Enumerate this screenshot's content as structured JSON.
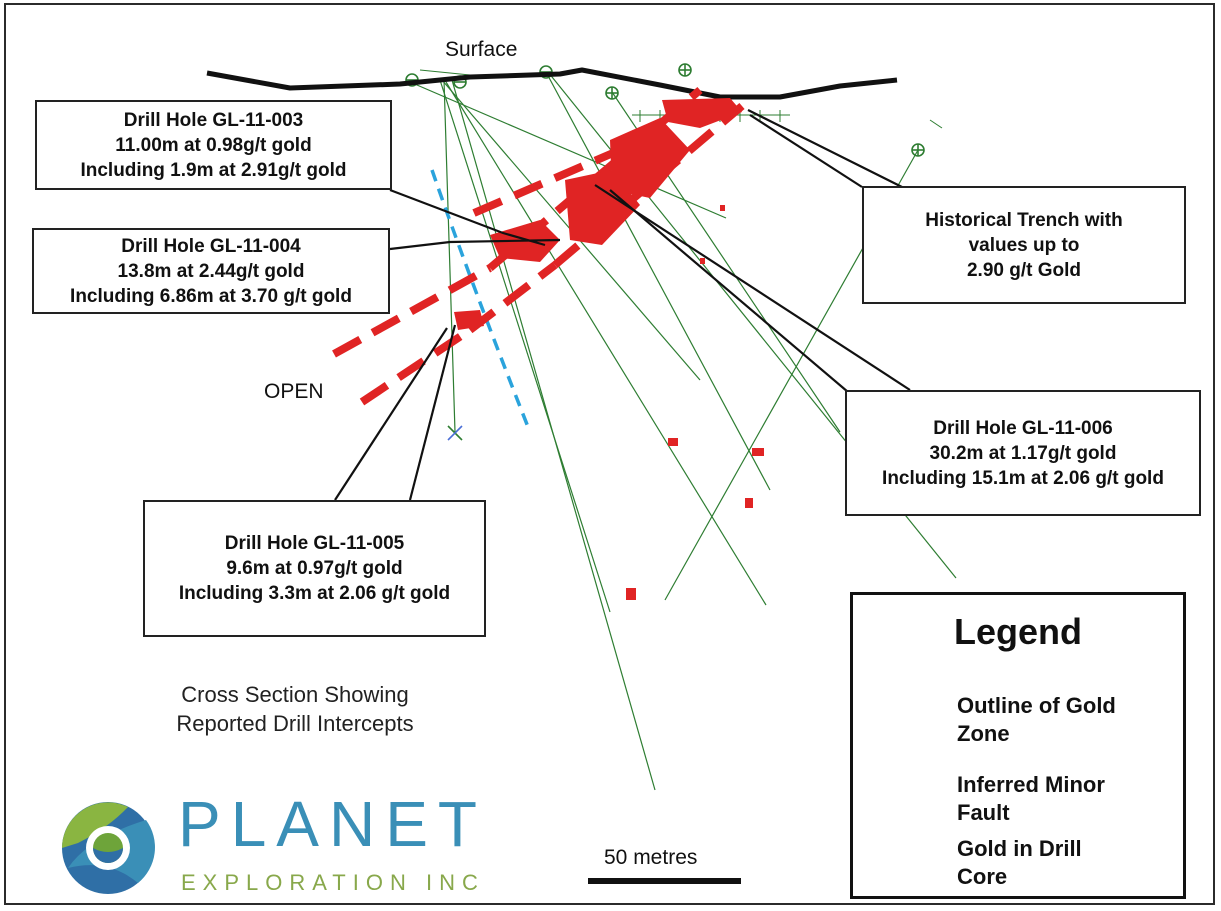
{
  "labels": {
    "surface": "Surface",
    "open": "OPEN",
    "caption": [
      "Cross Section Showing",
      "Reported Drill Intercepts"
    ]
  },
  "callouts": {
    "hole_003": [
      "Drill Hole GL-11-003",
      "11.00m at 0.98g/t gold",
      "Including 1.9m at 2.91g/t gold"
    ],
    "hole_004": [
      "Drill Hole GL-11-004",
      "13.8m at 2.44g/t gold",
      "Including 6.86m at 3.70 g/t gold"
    ],
    "hole_005": [
      "Drill Hole GL-11-005",
      "9.6m at 0.97g/t gold",
      "Including 3.3m at 2.06 g/t gold"
    ],
    "hole_006": [
      "Drill Hole GL-11-006",
      "30.2m at 1.17g/t gold",
      "Including 15.1m at 2.06 g/t gold"
    ],
    "trench": [
      "Historical Trench with",
      "values up to",
      "2.90 g/t Gold"
    ]
  },
  "legend": {
    "title": "Legend",
    "items": [
      {
        "lines": [
          "Outline of Gold",
          "Zone"
        ],
        "symbol": "red-dash-line"
      },
      {
        "lines": [
          "Inferred Minor",
          "Fault"
        ],
        "symbol": "blue-dash-line"
      },
      {
        "lines": [
          "Gold in Drill",
          "Core"
        ],
        "symbol": "gold-in-core-mark"
      }
    ]
  },
  "scale_bar": {
    "label": "50 metres"
  },
  "logo": {
    "name": "PLANET",
    "subtitle": "EXPLORATION INC"
  },
  "colors": {
    "gold_zone": "#e02424",
    "fault": "#2aa3dc",
    "drill_trace": "#2e7d32",
    "surface": "#111111",
    "logo_blue": "#3a8fb7",
    "logo_green": "#88a84b"
  }
}
